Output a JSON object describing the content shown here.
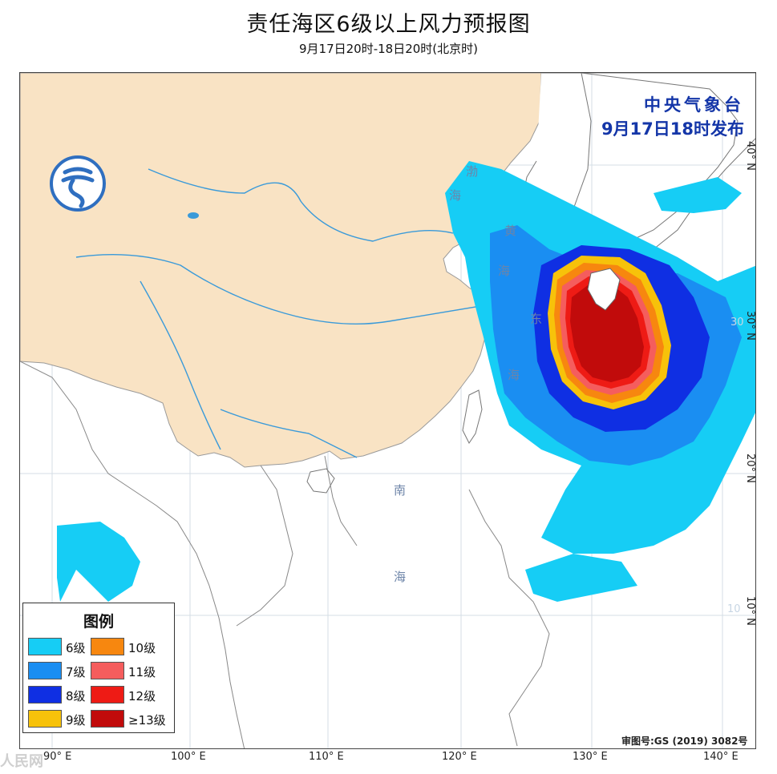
{
  "title": "责任海区6级以上风力预报图",
  "subtitle": "9月17日20时-18日20时(北京时)",
  "agency": {
    "name": "中央气象台",
    "issued": "9月17日18时发布"
  },
  "approval": "审图号:GS (2019) 3082号",
  "watermark": "人民网",
  "sea_labels": [
    "渤",
    "海",
    "黄",
    "海",
    "东",
    "海",
    "南",
    "海"
  ],
  "lat_labels": [
    "40° N",
    "30° N",
    "20° N",
    "10° N"
  ],
  "grid_numbers": [
    "30",
    "10"
  ],
  "lon_labels": [
    "90° E",
    "100° E",
    "110° E",
    "120° E",
    "130° E",
    "140° E"
  ],
  "legend": {
    "title": "图例",
    "items": [
      {
        "label": "6级",
        "color": "#16cdf5"
      },
      {
        "label": "7级",
        "color": "#1a8ef2"
      },
      {
        "label": "8级",
        "color": "#0f2fe3"
      },
      {
        "label": "9级",
        "color": "#f7c20a"
      },
      {
        "label": "10级",
        "color": "#f7870f"
      },
      {
        "label": "11级",
        "color": "#f55d5d"
      },
      {
        "label": "12级",
        "color": "#ee1b15"
      },
      {
        "label": "≥13级",
        "color": "#c10b0b"
      }
    ]
  },
  "colors": {
    "land": "#f9e3c4",
    "river": "#3a9ad9",
    "agency_text": "#1436a8",
    "logo": "#2f6fc0"
  }
}
